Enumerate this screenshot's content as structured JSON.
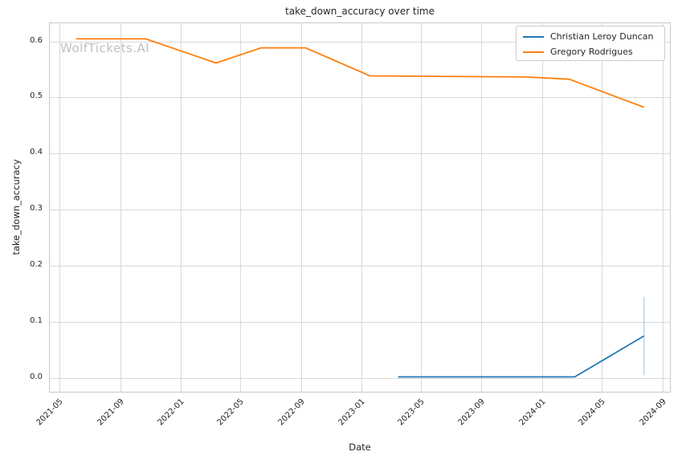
{
  "watermark_text": "WolfTickets.AI",
  "colors": {
    "series_blue": "#1f77b4",
    "series_orange": "#ff7f0e",
    "grid": "#d9d9d9",
    "text": "#262626",
    "watermark": "#c0c0c0"
  },
  "chart_data": {
    "type": "line",
    "title": "take_down_accuracy over time",
    "xlabel": "Date",
    "ylabel": "take_down_accuracy",
    "x_tick_labels": [
      "2021-05",
      "2021-09",
      "2022-01",
      "2022-05",
      "2022-09",
      "2023-01",
      "2023-05",
      "2023-09",
      "2024-01",
      "2024-05",
      "2024-09"
    ],
    "y_tick_labels": [
      "0.0",
      "0.1",
      "0.2",
      "0.3",
      "0.4",
      "0.5",
      "0.6"
    ],
    "ylim": [
      -0.03,
      0.63
    ],
    "grid": true,
    "legend_position": "upper right",
    "series": [
      {
        "name": "Christian Leroy Duncan",
        "color": "#1f77b4",
        "points": [
          {
            "date": "2023-03-18",
            "value": 0.0
          },
          {
            "date": "2023-07-22",
            "value": 0.0
          },
          {
            "date": "2024-03-09",
            "value": 0.0
          },
          {
            "date": "2024-07-27",
            "value": 0.073
          }
        ],
        "error_bars": [
          {
            "date": "2024-07-27",
            "low": 0.003,
            "high": 0.143
          }
        ]
      },
      {
        "name": "Gregory Rodrigues",
        "color": "#ff7f0e",
        "points": [
          {
            "date": "2021-06-05",
            "value": 0.603
          },
          {
            "date": "2021-10-24",
            "value": 0.603
          },
          {
            "date": "2022-03-15",
            "value": 0.56
          },
          {
            "date": "2022-06-14",
            "value": 0.587
          },
          {
            "date": "2022-09-12",
            "value": 0.587
          },
          {
            "date": "2023-01-20",
            "value": 0.537
          },
          {
            "date": "2023-12-02",
            "value": 0.535
          },
          {
            "date": "2024-02-27",
            "value": 0.531
          },
          {
            "date": "2024-07-27",
            "value": 0.481
          }
        ],
        "error_bars": []
      }
    ]
  }
}
